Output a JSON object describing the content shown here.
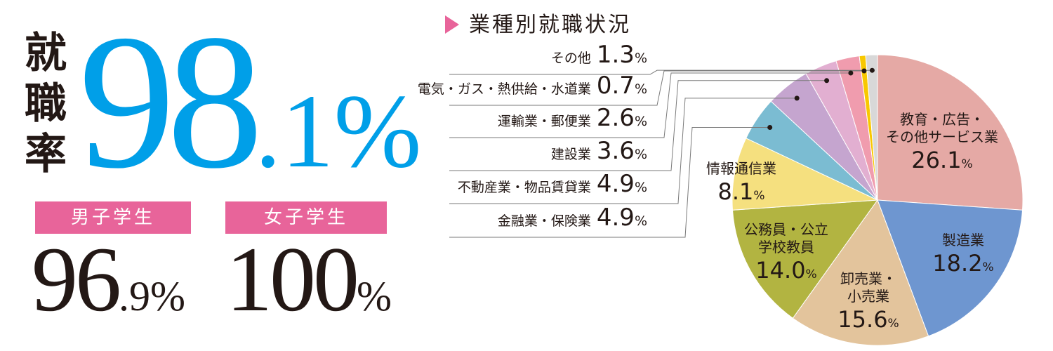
{
  "rate": {
    "label_chars": [
      "就",
      "職",
      "率"
    ],
    "value_int": "98",
    "value_dec": ".1",
    "percent": "%"
  },
  "male": {
    "label": "男子学生",
    "value_int": "96",
    "value_dec": ".9",
    "percent": "%"
  },
  "female": {
    "label": "女子学生",
    "value_int": "100",
    "value_dec": "",
    "percent": "%"
  },
  "chart_data": {
    "type": "pie",
    "title": "業種別就職状況",
    "unit": "%",
    "slices": [
      {
        "name_lines": [
          "教育・広告・",
          "その他サービス業"
        ],
        "value": 26.1,
        "color": "#e5a9a5",
        "label_position": "inside"
      },
      {
        "name_lines": [
          "製造業"
        ],
        "value": 18.2,
        "color": "#6e96d0",
        "label_position": "inside"
      },
      {
        "name_lines": [
          "卸売業・",
          "小売業"
        ],
        "value": 15.6,
        "color": "#e3c49c",
        "label_position": "inside"
      },
      {
        "name_lines": [
          "公務員・公立",
          "学校教員"
        ],
        "value": 14.0,
        "color": "#b2b441",
        "label_position": "inside"
      },
      {
        "name_lines": [
          "情報通信業"
        ],
        "value": 8.1,
        "color": "#f5e07f",
        "label_position": "inside"
      },
      {
        "name_lines": [
          "金融業・保険業"
        ],
        "value": 4.9,
        "color": "#7bbcd2",
        "label_position": "legend"
      },
      {
        "name_lines": [
          "不動産業・物品賃貸業"
        ],
        "value": 4.9,
        "color": "#c5a5cf",
        "label_position": "legend"
      },
      {
        "name_lines": [
          "建設業"
        ],
        "value": 3.6,
        "color": "#e2afd1",
        "label_position": "legend"
      },
      {
        "name_lines": [
          "運輸業・郵便業"
        ],
        "value": 2.6,
        "color": "#f09cae",
        "label_position": "legend"
      },
      {
        "name_lines": [
          "電気・ガス・熱供給・水道業"
        ],
        "value": 0.7,
        "color": "#f8c800",
        "label_position": "legend"
      },
      {
        "name_lines": [
          "その他"
        ],
        "value": 1.3,
        "color": "#d8d8d8",
        "label_position": "legend"
      }
    ],
    "legend_order": [
      "その他",
      "電気・ガス・熱供給・水道業",
      "運輸業・郵便業",
      "建設業",
      "不動産業・物品賃貸業",
      "金融業・保険業"
    ]
  }
}
